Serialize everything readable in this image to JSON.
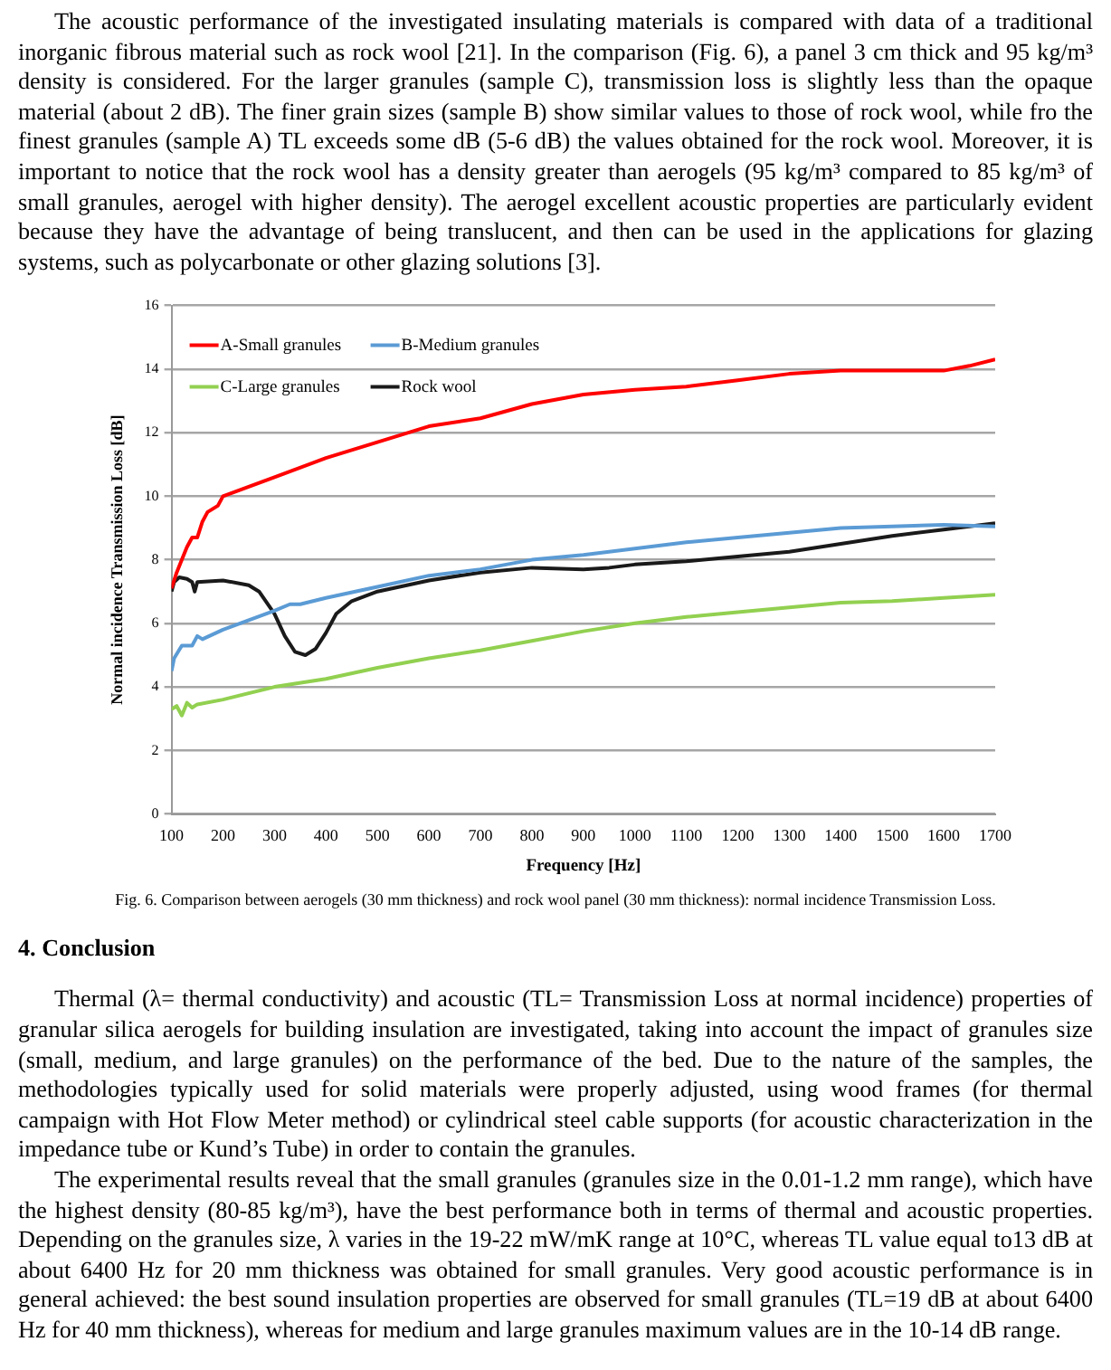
{
  "chart_data": {
    "type": "line",
    "xlabel": "Frequency [Hz]",
    "ylabel": "Normal incidence Transmission Loss [dB]",
    "xlim": [
      100,
      1700
    ],
    "xticks": [
      100,
      200,
      300,
      400,
      500,
      600,
      700,
      800,
      900,
      1000,
      1100,
      1200,
      1300,
      1400,
      1500,
      1600,
      1700
    ],
    "ylim": [
      0,
      16
    ],
    "yticks": [
      0,
      2,
      4,
      6,
      8,
      10,
      12,
      14,
      16
    ],
    "grid": "y",
    "legend": "top left",
    "marker": "none",
    "line_style": "solid",
    "annotations": [
      "The acoustic performance of the investigated insulating materials is compared with data of a traditional inorganic fibrous material such as rock wool [21]. In the comparison (Fig. 6), a panel 3 cm thick and 95 kg/m³ density is considered. For the larger granules (sample C), transmission loss is slightly less than the opaque material (about 2 dB). The finer grain sizes (sample B) show similar values to those of rock wool, while fro the finest granules (sample A) TL exceeds some dB (5-6 dB) the values obtained for the rock wool. Moreover, it is important to notice that the rock wool has a density greater than aerogels (95 kg/m³ compared to 85 kg/m³ of small granules, aerogel with higher density). The aerogel excellent acoustic properties are particularly evident because they have the advantage of being translucent, and then can be used in the applications for glazing systems, such as polycarbonate or other glazing solutions [3].",
      "Fig. 6. Comparison between aerogels (30 mm thickness) and rock wool panel (30 mm thickness): normal incidence Transmission Loss.",
      "4. Conclusion",
      "Thermal (λ= thermal conductivity) and acoustic (TL= Transmission Loss at normal incidence) properties of granular silica aerogels for building insulation are investigated, taking into account the impact of granules size (small, medium, and large granules) on the performance of the bed. Due to the nature of the samples, the methodologies typically used for solid materials were properly adjusted, using wood frames (for thermal campaign with Hot Flow Meter method) or cylindrical steel cable supports (for acoustic characterization in the impedance tube or Kund’s Tube) in order to contain the granules.",
      "The experimental results reveal that the small granules (granules size in the 0.01-1.2 mm range), which have the highest density (80-85 kg/m³), have the best performance both in terms of thermal and acoustic properties. Depending on the granules size, λ varies in the 19-22 mW/mK range at 10°C, whereas TL value equal to13 dB at about 6400 Hz for 20 mm thickness was obtained for small granules. Very good acoustic performance is in general achieved: the best sound insulation properties are observed for small granules (TL=19 dB at about 6400 Hz for 40 mm thickness), whereas for medium and large granules maximum values are in the 10-14 dB range."
    ],
    "series": [
      {
        "name": "A-Small granules",
        "color": "#ff0000",
        "x": [
          100,
          110,
          120,
          130,
          140,
          150,
          160,
          170,
          190,
          200,
          250,
          300,
          400,
          500,
          600,
          700,
          800,
          900,
          1000,
          1100,
          1200,
          1300,
          1400,
          1500,
          1600,
          1650,
          1700
        ],
        "values": [
          7.1,
          7.6,
          8.0,
          8.4,
          8.7,
          8.7,
          9.2,
          9.5,
          9.7,
          10.0,
          10.3,
          10.6,
          11.2,
          11.7,
          12.2,
          12.45,
          12.9,
          13.2,
          13.35,
          13.45,
          13.65,
          13.85,
          13.95,
          13.95,
          13.95,
          14.1,
          14.3
        ]
      },
      {
        "name": "B-Medium granules",
        "color": "#5b9bd5",
        "x": [
          100,
          105,
          120,
          140,
          150,
          160,
          200,
          250,
          300,
          330,
          350,
          400,
          500,
          600,
          700,
          800,
          900,
          1000,
          1100,
          1200,
          1300,
          1400,
          1500,
          1600,
          1700
        ],
        "values": [
          4.5,
          4.9,
          5.3,
          5.3,
          5.6,
          5.5,
          5.8,
          6.1,
          6.4,
          6.6,
          6.6,
          6.8,
          7.15,
          7.5,
          7.7,
          8.0,
          8.15,
          8.35,
          8.55,
          8.7,
          8.85,
          9.0,
          9.05,
          9.1,
          9.05
        ]
      },
      {
        "name": "C-Large granules",
        "color": "#92d050",
        "x": [
          100,
          110,
          120,
          130,
          140,
          150,
          200,
          300,
          400,
          500,
          600,
          700,
          800,
          900,
          1000,
          1100,
          1200,
          1300,
          1400,
          1500,
          1600,
          1700
        ],
        "values": [
          3.3,
          3.4,
          3.1,
          3.5,
          3.35,
          3.45,
          3.6,
          4.0,
          4.25,
          4.6,
          4.9,
          5.15,
          5.45,
          5.75,
          6.0,
          6.2,
          6.35,
          6.5,
          6.65,
          6.7,
          6.8,
          6.9
        ]
      },
      {
        "name": "Rock wool",
        "color": "#1a1a1a",
        "x": [
          100,
          105,
          115,
          130,
          140,
          145,
          150,
          200,
          250,
          270,
          300,
          320,
          340,
          360,
          380,
          400,
          420,
          450,
          500,
          600,
          700,
          800,
          900,
          950,
          1000,
          1100,
          1200,
          1300,
          1400,
          1500,
          1600,
          1700
        ],
        "values": [
          7.0,
          7.3,
          7.45,
          7.4,
          7.3,
          7.0,
          7.3,
          7.35,
          7.2,
          7.0,
          6.3,
          5.6,
          5.1,
          5.0,
          5.2,
          5.7,
          6.3,
          6.7,
          7.0,
          7.35,
          7.6,
          7.75,
          7.7,
          7.75,
          7.85,
          7.95,
          8.1,
          8.25,
          8.5,
          8.75,
          8.95,
          9.15
        ]
      }
    ]
  }
}
